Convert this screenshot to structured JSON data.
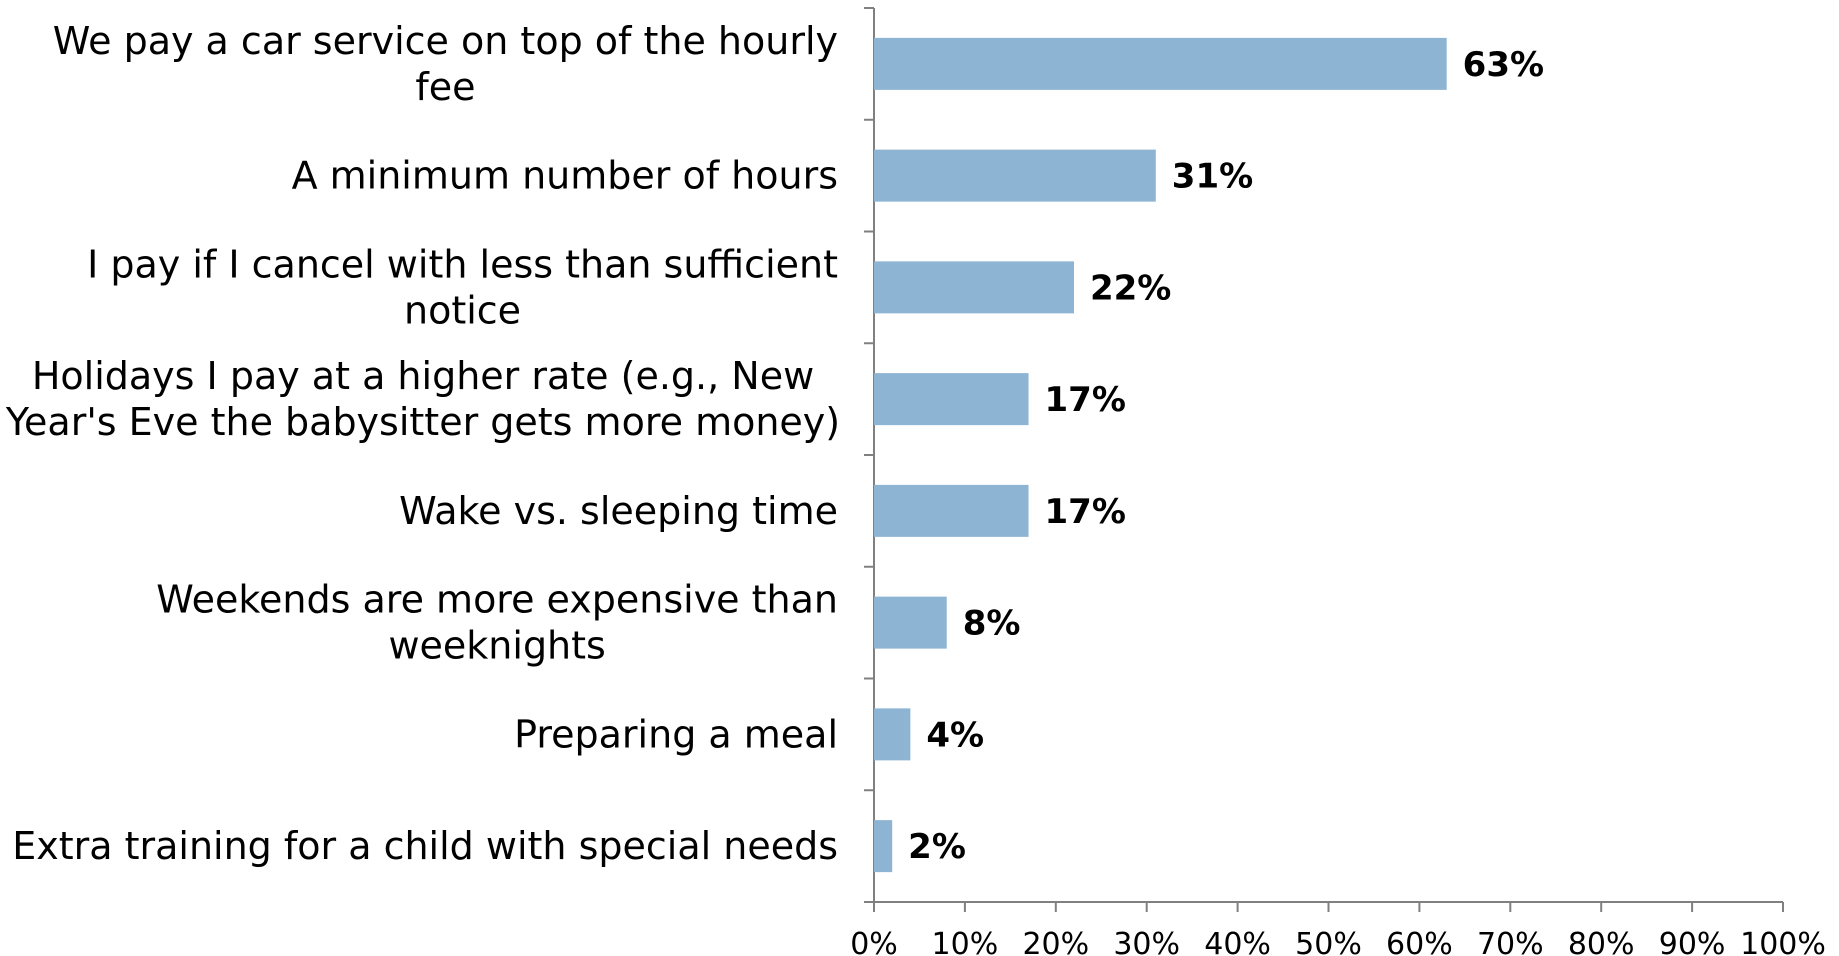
{
  "chart_data": {
    "type": "bar",
    "orientation": "horizontal",
    "categories": [
      [
        "We pay a car service on top of the hourly",
        "fee"
      ],
      [
        "A minimum number of hours"
      ],
      [
        "I pay if I cancel with less than sufficient",
        "notice"
      ],
      [
        "Holidays I pay at a higher rate (e.g., New",
        "Year's Eve the babysitter gets more money)"
      ],
      [
        "Wake vs. sleeping time"
      ],
      [
        "Weekends are more expensive than",
        "weeknights"
      ],
      [
        "Preparing a meal"
      ],
      [
        "Extra training for a child with special needs"
      ]
    ],
    "values": [
      63,
      31,
      22,
      17,
      17,
      8,
      4,
      2
    ],
    "value_labels": [
      "63%",
      "31%",
      "22%",
      "17%",
      "17%",
      "8%",
      "4%",
      "2%"
    ],
    "x_ticks": [
      "0%",
      "10%",
      "20%",
      "30%",
      "40%",
      "50%",
      "60%",
      "70%",
      "80%",
      "90%",
      "100%"
    ],
    "xlim": [
      0,
      100
    ],
    "bar_color": "#8db4d2",
    "axis_color": "#808080",
    "grid": false,
    "legend": "none"
  }
}
